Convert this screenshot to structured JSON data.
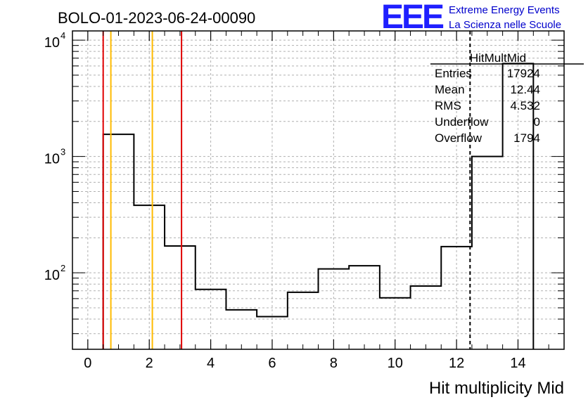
{
  "page_title": "BOLO-01-2023-06-24-00090",
  "logo": {
    "text": "EEE",
    "line1": "Extreme Energy Events",
    "line2": "La Scienza nelle Scuole"
  },
  "stats": {
    "name": "HitMultMid",
    "rows": [
      {
        "label": "Entries",
        "value": "17924"
      },
      {
        "label": "Mean",
        "value": "12.44"
      },
      {
        "label": "RMS",
        "value": "4.532"
      },
      {
        "label": "Underflow",
        "value": "0"
      },
      {
        "label": "Overflow",
        "value": "1794"
      }
    ]
  },
  "chart_data": {
    "type": "histogram",
    "title": "BOLO-01-2023-06-24-00090",
    "xlabel": "Hit multiplicity Mid",
    "ylabel": "",
    "xlim": [
      -0.5,
      15.5
    ],
    "ylim": [
      22,
      12000
    ],
    "y_scale": "log",
    "grid": true,
    "x_ticks": [
      0,
      2,
      4,
      6,
      8,
      10,
      12,
      14
    ],
    "x_tick_labels": [
      "0",
      "2",
      "4",
      "6",
      "8",
      "10",
      "12",
      "14"
    ],
    "y_ticks": [
      {
        "value": 100,
        "base": "10",
        "exp": "2"
      },
      {
        "value": 1000,
        "base": "10",
        "exp": "3"
      },
      {
        "value": 10000,
        "base": "10",
        "exp": "4"
      }
    ],
    "bin_edges": [
      0.5,
      1.5,
      2.5,
      3.5,
      4.5,
      5.5,
      6.5,
      7.5,
      8.5,
      9.5,
      10.5,
      11.5,
      12.5,
      13.5,
      14.5
    ],
    "counts": [
      1550,
      380,
      170,
      72,
      48,
      42,
      68,
      108,
      115,
      61,
      77,
      168,
      1000,
      6300
    ],
    "vertical_lines": [
      {
        "x": 0.5,
        "color": "#e00000",
        "style": "solid"
      },
      {
        "x": 0.75,
        "color": "#ffbb00",
        "style": "solid"
      },
      {
        "x": 2.1,
        "color": "#ffbb00",
        "style": "solid"
      },
      {
        "x": 3.05,
        "color": "#e00000",
        "style": "solid"
      },
      {
        "x": 12.44,
        "color": "#000000",
        "style": "dashed"
      }
    ],
    "colors": {
      "histogram": "#000000",
      "grid": "#b0b0b0"
    }
  }
}
